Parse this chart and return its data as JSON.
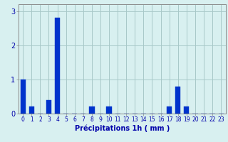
{
  "categories": [
    0,
    1,
    2,
    3,
    4,
    5,
    6,
    7,
    8,
    9,
    10,
    11,
    12,
    13,
    14,
    15,
    16,
    17,
    18,
    19,
    20,
    21,
    22,
    23
  ],
  "values": [
    1.0,
    0.2,
    0.0,
    0.4,
    2.8,
    0.0,
    0.0,
    0.0,
    0.2,
    0.0,
    0.2,
    0.0,
    0.0,
    0.0,
    0.0,
    0.0,
    0.0,
    0.2,
    0.8,
    0.2,
    0.0,
    0.0,
    0.0,
    0.0
  ],
  "bar_color": "#0033cc",
  "bar_edge_color": "#0033cc",
  "background_color": "#d8f0f0",
  "grid_color": "#a8c8c8",
  "text_color": "#0000aa",
  "spine_color": "#888888",
  "xlabel": "Précipitations 1h ( mm )",
  "ylim": [
    0,
    3.2
  ],
  "yticks": [
    0,
    1,
    2,
    3
  ],
  "xlabel_fontsize": 7,
  "tick_fontsize": 5.5,
  "ytick_fontsize": 7,
  "fig_width": 3.2,
  "fig_height": 2.0,
  "dpi": 100,
  "bar_width": 0.6
}
